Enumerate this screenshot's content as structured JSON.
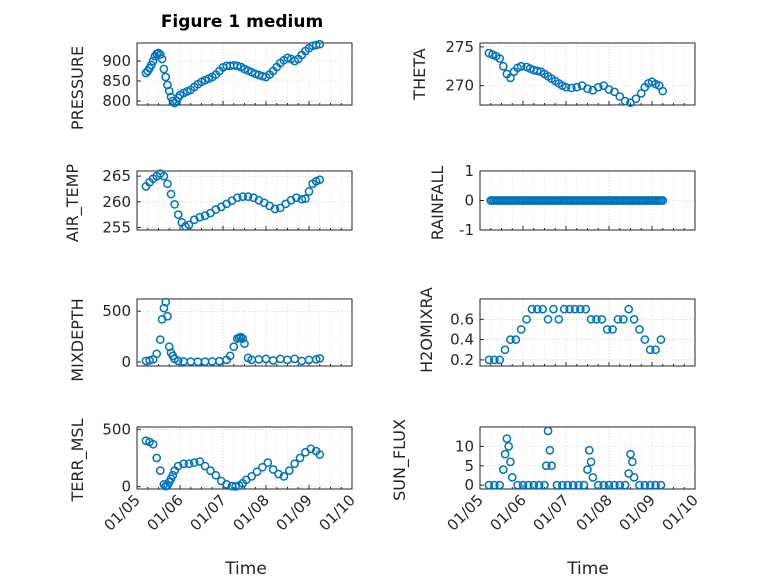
{
  "figure": {
    "title": "Figure 1 medium",
    "marker_color": "#0072BD"
  },
  "chart_data": [
    {
      "type": "scatter",
      "name": "pressure",
      "title": "Figure 1 medium",
      "ylabel": "PRESSURE",
      "xlabel": "",
      "xlim": [
        "01/05 00:00",
        "01/10 00:00"
      ],
      "ylim": [
        790,
        945
      ],
      "yticks": [
        800,
        850,
        900
      ],
      "xticks": [],
      "grid": true,
      "x": [
        "01/05 05:00",
        "01/05 06:00",
        "01/05 07:00",
        "01/05 08:00",
        "01/05 09:00",
        "01/05 10:00",
        "01/05 11:00",
        "01/05 12:00",
        "01/05 13:00",
        "01/05 14:00",
        "01/05 15:00",
        "01/05 16:00",
        "01/05 17:00",
        "01/05 18:00",
        "01/05 19:00",
        "01/05 20:00",
        "01/05 21:00",
        "01/05 22:00",
        "01/05 23:00",
        "01/06 00:00",
        "01/06 02:00",
        "01/06 04:00",
        "01/06 06:00",
        "01/06 08:00",
        "01/06 10:00",
        "01/06 12:00",
        "01/06 14:00",
        "01/06 16:00",
        "01/06 18:00",
        "01/06 20:00",
        "01/06 22:00",
        "01/07 00:00",
        "01/07 02:00",
        "01/07 04:00",
        "01/07 06:00",
        "01/07 08:00",
        "01/07 10:00",
        "01/07 12:00",
        "01/07 14:00",
        "01/07 16:00",
        "01/07 18:00",
        "01/07 20:00",
        "01/07 22:00",
        "01/08 00:00",
        "01/08 02:00",
        "01/08 04:00",
        "01/08 06:00",
        "01/08 08:00",
        "01/08 10:00",
        "01/08 12:00",
        "01/08 14:00",
        "01/08 16:00",
        "01/08 18:00",
        "01/08 20:00",
        "01/08 22:00",
        "01/09 00:00",
        "01/09 02:00",
        "01/09 04:00",
        "01/09 06:00"
      ],
      "y": [
        870,
        875,
        882,
        890,
        900,
        912,
        918,
        920,
        916,
        905,
        880,
        860,
        840,
        825,
        810,
        800,
        795,
        800,
        808,
        815,
        820,
        824,
        828,
        835,
        842,
        848,
        852,
        856,
        860,
        866,
        875,
        884,
        888,
        888,
        889,
        888,
        885,
        880,
        876,
        872,
        868,
        865,
        862,
        860,
        866,
        875,
        885,
        895,
        902,
        908,
        905,
        900,
        905,
        915,
        925,
        932,
        938,
        940,
        942
      ]
    },
    {
      "type": "scatter",
      "name": "theta",
      "ylabel": "THETA",
      "xlabel": "",
      "xlim": [
        "01/05 00:00",
        "01/10 00:00"
      ],
      "ylim": [
        267.5,
        275.5
      ],
      "yticks": [
        270,
        275
      ],
      "xticks": [],
      "grid": true,
      "x": [
        "01/05 05:00",
        "01/05 07:00",
        "01/05 09:00",
        "01/05 11:00",
        "01/05 13:00",
        "01/05 15:00",
        "01/05 17:00",
        "01/05 19:00",
        "01/05 21:00",
        "01/05 23:00",
        "01/06 02:00",
        "01/06 04:00",
        "01/06 06:00",
        "01/06 08:00",
        "01/06 10:00",
        "01/06 12:00",
        "01/06 14:00",
        "01/06 16:00",
        "01/06 18:00",
        "01/06 20:00",
        "01/06 22:00",
        "01/07 00:00",
        "01/07 03:00",
        "01/07 06:00",
        "01/07 09:00",
        "01/07 12:00",
        "01/07 15:00",
        "01/07 18:00",
        "01/07 21:00",
        "01/08 00:00",
        "01/08 03:00",
        "01/08 06:00",
        "01/08 09:00",
        "01/08 12:00",
        "01/08 15:00",
        "01/08 18:00",
        "01/08 20:00",
        "01/08 22:00",
        "01/09 00:00",
        "01/09 02:00",
        "01/09 04:00",
        "01/09 06:00"
      ],
      "y": [
        274.2,
        274.0,
        273.8,
        273.5,
        272.5,
        271.5,
        271.0,
        271.8,
        272.3,
        272.5,
        272.4,
        272.2,
        272.0,
        271.9,
        271.8,
        271.5,
        271.2,
        270.9,
        270.6,
        270.3,
        270.0,
        269.8,
        269.7,
        269.8,
        270.0,
        269.6,
        269.4,
        269.8,
        270.0,
        269.5,
        269.2,
        268.6,
        268.0,
        267.8,
        268.3,
        269.0,
        269.8,
        270.3,
        270.5,
        270.2,
        270.0,
        269.3
      ]
    },
    {
      "type": "scatter",
      "name": "air_temp",
      "ylabel": "AIR_TEMP",
      "xlabel": "",
      "xlim": [
        "01/05 00:00",
        "01/10 00:00"
      ],
      "ylim": [
        254.5,
        266
      ],
      "yticks": [
        255,
        260,
        265
      ],
      "xticks": [],
      "grid": true,
      "x": [
        "01/05 05:00",
        "01/05 07:00",
        "01/05 09:00",
        "01/05 11:00",
        "01/05 13:00",
        "01/05 15:00",
        "01/05 17:00",
        "01/05 19:00",
        "01/05 21:00",
        "01/05 23:00",
        "01/06 01:00",
        "01/06 03:00",
        "01/06 05:00",
        "01/06 08:00",
        "01/06 11:00",
        "01/06 14:00",
        "01/06 17:00",
        "01/06 20:00",
        "01/06 23:00",
        "01/07 02:00",
        "01/07 05:00",
        "01/07 08:00",
        "01/07 11:00",
        "01/07 14:00",
        "01/07 17:00",
        "01/07 20:00",
        "01/07 23:00",
        "01/08 02:00",
        "01/08 05:00",
        "01/08 08:00",
        "01/08 11:00",
        "01/08 14:00",
        "01/08 17:00",
        "01/08 20:00",
        "01/08 22:00",
        "01/09 00:00",
        "01/09 02:00",
        "01/09 04:00",
        "01/09 06:00"
      ],
      "y": [
        263.0,
        263.8,
        264.5,
        265.0,
        265.5,
        265.0,
        263.5,
        261.5,
        259.5,
        257.5,
        256.0,
        255.2,
        255.5,
        256.5,
        257.0,
        257.3,
        257.8,
        258.5,
        259.0,
        259.6,
        260.2,
        260.8,
        261.0,
        261.0,
        260.8,
        260.3,
        259.8,
        259.2,
        258.6,
        258.8,
        259.6,
        260.3,
        260.8,
        260.5,
        260.6,
        262.0,
        263.5,
        264.0,
        264.3
      ]
    },
    {
      "type": "scatter",
      "name": "rainfall",
      "ylabel": "RAINFALL",
      "xlabel": "",
      "xlim": [
        "01/05 00:00",
        "01/10 00:00"
      ],
      "ylim": [
        -1,
        1
      ],
      "yticks": [
        -1,
        0,
        1
      ],
      "xticks": [],
      "grid": true,
      "x": [
        "01/05 06:00",
        "01/09 06:00"
      ],
      "y": [
        0,
        0
      ],
      "constant_step_hours": 1
    },
    {
      "type": "scatter",
      "name": "mixdepth",
      "ylabel": "MIXDEPTH",
      "xlabel": "",
      "xlim": [
        "01/05 00:00",
        "01/10 00:00"
      ],
      "ylim": [
        -40,
        620
      ],
      "yticks": [
        0,
        500
      ],
      "xticks": [],
      "grid": true,
      "x": [
        "01/05 05:00",
        "01/05 07:00",
        "01/05 09:00",
        "01/05 11:00",
        "01/05 13:00",
        "01/05 14:00",
        "01/05 15:00",
        "01/05 16:00",
        "01/05 17:00",
        "01/05 18:00",
        "01/05 19:00",
        "01/05 20:00",
        "01/05 21:00",
        "01/05 23:00",
        "01/06 02:00",
        "01/06 06:00",
        "01/06 10:00",
        "01/06 14:00",
        "01/06 18:00",
        "01/06 22:00",
        "01/07 02:00",
        "01/07 04:00",
        "01/07 06:00",
        "01/07 08:00",
        "01/07 09:00",
        "01/07 10:00",
        "01/07 11:00",
        "01/07 12:00",
        "01/07 14:00",
        "01/07 16:00",
        "01/07 20:00",
        "01/08 00:00",
        "01/08 04:00",
        "01/08 08:00",
        "01/08 12:00",
        "01/08 16:00",
        "01/08 20:00",
        "01/09 00:00",
        "01/09 04:00",
        "01/09 06:00"
      ],
      "y": [
        10,
        15,
        25,
        80,
        220,
        420,
        530,
        590,
        450,
        150,
        90,
        60,
        30,
        10,
        5,
        3,
        2,
        3,
        5,
        8,
        20,
        60,
        150,
        230,
        240,
        245,
        230,
        180,
        40,
        20,
        25,
        30,
        15,
        30,
        20,
        30,
        10,
        20,
        25,
        35
      ]
    },
    {
      "type": "scatter",
      "name": "h2omixra",
      "ylabel": "H2OMIXRA",
      "xlabel": "",
      "xlim": [
        "01/05 00:00",
        "01/10 00:00"
      ],
      "ylim": [
        0.14,
        0.8
      ],
      "yticks": [
        0.2,
        0.4,
        0.6
      ],
      "xticks": [],
      "grid": true,
      "x": [
        "01/05 05:00",
        "01/05 08:00",
        "01/05 11:00",
        "01/05 14:00",
        "01/05 17:00",
        "01/05 20:00",
        "01/05 23:00",
        "01/06 02:00",
        "01/06 05:00",
        "01/06 08:00",
        "01/06 11:00",
        "01/06 14:00",
        "01/06 17:00",
        "01/06 20:00",
        "01/06 23:00",
        "01/07 02:00",
        "01/07 05:00",
        "01/07 08:00",
        "01/07 11:00",
        "01/07 14:00",
        "01/07 17:00",
        "01/07 20:00",
        "01/07 23:00",
        "01/08 02:00",
        "01/08 05:00",
        "01/08 08:00",
        "01/08 11:00",
        "01/08 14:00",
        "01/08 17:00",
        "01/08 20:00",
        "01/08 23:00",
        "01/09 02:00",
        "01/09 05:00"
      ],
      "y": [
        0.2,
        0.2,
        0.2,
        0.3,
        0.4,
        0.4,
        0.5,
        0.6,
        0.7,
        0.7,
        0.7,
        0.6,
        0.7,
        0.6,
        0.7,
        0.7,
        0.7,
        0.7,
        0.7,
        0.6,
        0.6,
        0.6,
        0.5,
        0.5,
        0.6,
        0.6,
        0.7,
        0.6,
        0.5,
        0.4,
        0.3,
        0.3,
        0.4
      ]
    },
    {
      "type": "scatter",
      "name": "terr_msl",
      "ylabel": "TERR_MSL",
      "xlabel": "Time",
      "xlim": [
        "01/05 00:00",
        "01/10 00:00"
      ],
      "ylim": [
        -20,
        520
      ],
      "yticks": [
        0,
        500
      ],
      "xticks": [
        "01/05",
        "01/06",
        "01/07",
        "01/08",
        "01/09",
        "01/10"
      ],
      "grid": true,
      "x": [
        "01/05 05:00",
        "01/05 07:00",
        "01/05 09:00",
        "01/05 11:00",
        "01/05 13:00",
        "01/05 15:00",
        "01/05 16:00",
        "01/05 17:00",
        "01/05 18:00",
        "01/05 19:00",
        "01/05 20:00",
        "01/05 21:00",
        "01/05 23:00",
        "01/06 02:00",
        "01/06 05:00",
        "01/06 08:00",
        "01/06 11:00",
        "01/06 14:00",
        "01/06 17:00",
        "01/06 20:00",
        "01/06 23:00",
        "01/07 02:00",
        "01/07 05:00",
        "01/07 07:00",
        "01/07 09:00",
        "01/07 11:00",
        "01/07 13:00",
        "01/07 16:00",
        "01/07 19:00",
        "01/07 22:00",
        "01/08 01:00",
        "01/08 04:00",
        "01/08 07:00",
        "01/08 10:00",
        "01/08 13:00",
        "01/08 16:00",
        "01/08 19:00",
        "01/08 22:00",
        "01/09 01:00",
        "01/09 04:00",
        "01/09 06:00"
      ],
      "y": [
        400,
        390,
        370,
        250,
        140,
        20,
        5,
        10,
        40,
        70,
        100,
        140,
        180,
        200,
        200,
        210,
        220,
        180,
        140,
        100,
        50,
        20,
        5,
        2,
        10,
        30,
        60,
        90,
        130,
        170,
        210,
        150,
        110,
        90,
        140,
        200,
        250,
        300,
        330,
        310,
        280
      ]
    },
    {
      "type": "scatter",
      "name": "sun_flux",
      "ylabel": "SUN_FLUX",
      "xlabel": "Time",
      "xlim": [
        "01/05 00:00",
        "01/10 00:00"
      ],
      "ylim": [
        -1,
        15
      ],
      "yticks": [
        0,
        5,
        10
      ],
      "xticks": [
        "01/05",
        "01/06",
        "01/07",
        "01/08",
        "01/09",
        "01/10"
      ],
      "grid": true,
      "x": [
        "01/05 05:00",
        "01/05 08:00",
        "01/05 11:00",
        "01/05 13:00",
        "01/05 14:00",
        "01/05 15:00",
        "01/05 16:00",
        "01/05 17:00",
        "01/05 18:00",
        "01/05 21:00",
        "01/06 00:00",
        "01/06 03:00",
        "01/06 06:00",
        "01/06 09:00",
        "01/06 12:00",
        "01/06 13:00",
        "01/06 14:00",
        "01/06 15:00",
        "01/06 16:00",
        "01/06 19:00",
        "01/06 22:00",
        "01/07 01:00",
        "01/07 04:00",
        "01/07 07:00",
        "01/07 10:00",
        "01/07 12:00",
        "01/07 13:00",
        "01/07 14:00",
        "01/07 15:00",
        "01/07 18:00",
        "01/07 21:00",
        "01/08 00:00",
        "01/08 03:00",
        "01/08 06:00",
        "01/08 09:00",
        "01/08 11:00",
        "01/08 12:00",
        "01/08 13:00",
        "01/08 14:00",
        "01/08 17:00",
        "01/08 20:00",
        "01/08 23:00",
        "01/09 02:00",
        "01/09 05:00"
      ],
      "y": [
        0,
        0,
        0,
        4,
        8,
        12,
        10,
        6,
        2,
        0,
        0,
        0,
        0,
        0,
        0,
        5,
        14,
        9,
        5,
        0,
        0,
        0,
        0,
        0,
        0,
        4,
        9,
        6,
        2,
        0,
        0,
        0,
        0,
        0,
        0,
        3,
        8,
        6,
        2,
        0,
        0,
        0,
        0,
        0
      ]
    }
  ]
}
